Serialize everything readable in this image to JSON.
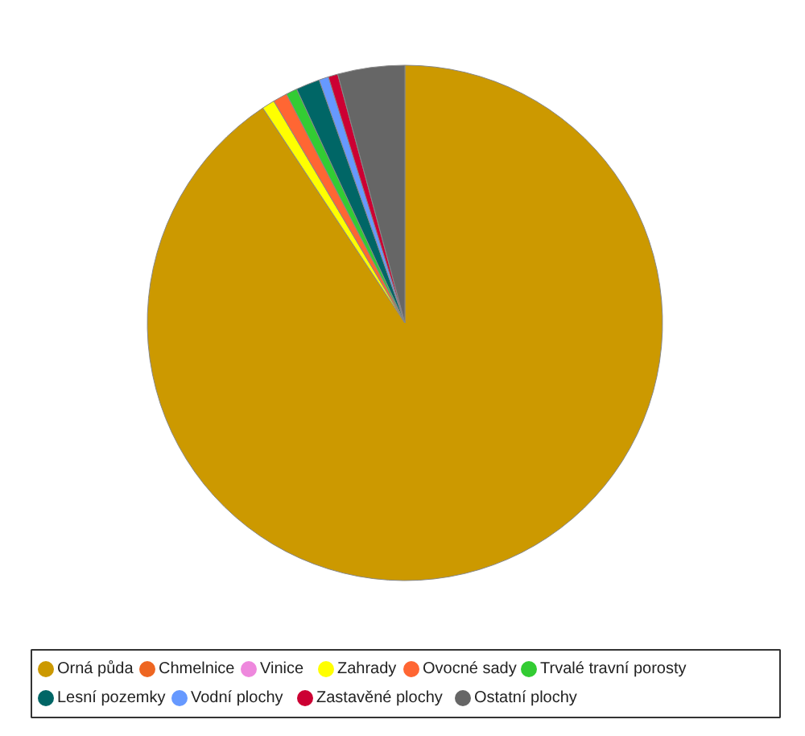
{
  "chart_data": {
    "type": "pie",
    "categories": [
      "Orná půda",
      "Chmelnice",
      "Vinice",
      "Zahrady",
      "Ovocné sady",
      "Trvalé travní porosty",
      "Lesní pozemky",
      "Vodní plochy",
      "Zastavěné plochy",
      "Ostatní plochy"
    ],
    "values": [
      90.7,
      0,
      0,
      0.8,
      0.9,
      0.7,
      1.5,
      0.6,
      0.6,
      4.2
    ],
    "colors": [
      "#cc9900",
      "#ee6622",
      "#ee88dd",
      "#ffff00",
      "#ff6633",
      "#33cc33",
      "#006666",
      "#6699ff",
      "#cc0033",
      "#666666"
    ],
    "legend": "bottom"
  }
}
